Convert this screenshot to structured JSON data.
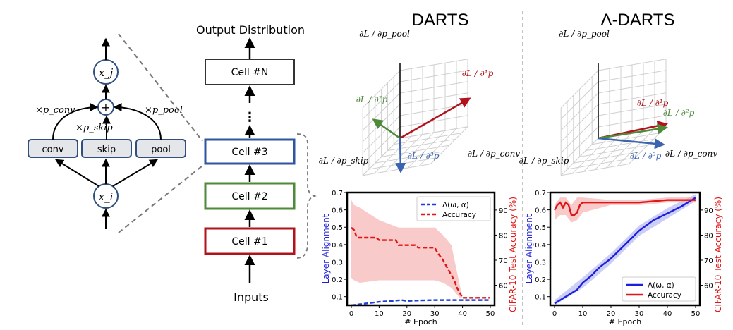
{
  "cell": {
    "x_i": "x_i",
    "x_j": "x_j",
    "plus": "+",
    "ops": [
      "conv",
      "skip",
      "pool"
    ],
    "weights": [
      "×p_conv",
      "×p_skip",
      "×p_pool"
    ]
  },
  "network": {
    "output": "Output Distribution",
    "cells": [
      "Cell #N",
      "Cell #3",
      "Cell #2",
      "Cell #1"
    ],
    "ellipsis": "⋮",
    "inputs": "Inputs"
  },
  "panels": {
    "darts_title": "DARTS",
    "lambda_title": "Λ-DARTS",
    "axis_pool": "∂L / ∂p_pool",
    "axis_skip": "∂L / ∂p_skip",
    "axis_conv": "∂L / ∂p_conv",
    "grad1": "∂L / ∂¹p",
    "grad2": "∂L / ∂²p",
    "grad3": "∂L / ∂³p"
  },
  "chart_data": [
    {
      "type": "line",
      "title": "DARTS",
      "xlabel": "# Epoch",
      "ylabel": "Layer Alignment",
      "y2label": "CIFAR-10 Test Accuracy (%)",
      "xlim": [
        0,
        50
      ],
      "ylim": [
        0.05,
        0.7
      ],
      "y2lim": [
        52,
        97
      ],
      "x_ticks": [
        0,
        10,
        20,
        30,
        40,
        50
      ],
      "y_ticks": [
        0.1,
        0.2,
        0.3,
        0.4,
        0.5,
        0.6,
        0.7
      ],
      "y2_ticks": [
        60,
        70,
        80,
        90
      ],
      "legend": "top-right",
      "series": [
        {
          "name": "Λ(ω, α)",
          "axis": "left",
          "style": "dashed",
          "color": "#1f3fd8",
          "x": [
            0,
            5,
            10,
            15,
            18,
            20,
            25,
            30,
            35,
            40,
            45,
            50
          ],
          "y": [
            0.05,
            0.06,
            0.07,
            0.075,
            0.08,
            0.075,
            0.078,
            0.08,
            0.08,
            0.08,
            0.08,
            0.08
          ]
        },
        {
          "name": "Accuracy",
          "axis": "right",
          "style": "dashed",
          "color": "#e01515",
          "x": [
            0,
            1,
            2,
            9,
            10,
            16,
            17,
            23,
            24,
            30,
            31,
            33,
            34,
            35,
            36,
            37,
            38,
            39,
            40,
            50
          ],
          "y": [
            83,
            82,
            79,
            79,
            78,
            78,
            76,
            76,
            75,
            75,
            73,
            70,
            68,
            66,
            64,
            62,
            59,
            57,
            55,
            55
          ]
        }
      ],
      "bands": [
        {
          "series": "Accuracy",
          "color": "#f4a6a6",
          "x": [
            0,
            1,
            3,
            10,
            17,
            24,
            30,
            33,
            36,
            39,
            40,
            50
          ],
          "upper": [
            94,
            92,
            91,
            86,
            83,
            83,
            83,
            80,
            76,
            60,
            55,
            55
          ],
          "lower": [
            63,
            62,
            61,
            62,
            62,
            62,
            62,
            61,
            59,
            55,
            55,
            55
          ]
        }
      ]
    },
    {
      "type": "line",
      "title": "Λ-DARTS",
      "xlabel": "# Epoch",
      "ylabel": "Layer Alignment",
      "y2label": "CIFAR-10 Test Accuracy (%)",
      "xlim": [
        0,
        50
      ],
      "ylim": [
        0.05,
        0.7
      ],
      "y2lim": [
        52,
        97
      ],
      "x_ticks": [
        0,
        10,
        20,
        30,
        40,
        50
      ],
      "y_ticks": [
        0.1,
        0.2,
        0.3,
        0.4,
        0.5,
        0.6,
        0.7
      ],
      "y2_ticks": [
        60,
        70,
        80,
        90
      ],
      "legend": "bottom-right",
      "series": [
        {
          "name": "Λ(ω, α)",
          "axis": "left",
          "style": "solid",
          "color": "#1f1fd8",
          "x": [
            0,
            2,
            5,
            8,
            10,
            13,
            16,
            20,
            25,
            30,
            35,
            40,
            45,
            48,
            50
          ],
          "y": [
            0.06,
            0.08,
            0.11,
            0.14,
            0.18,
            0.22,
            0.27,
            0.32,
            0.4,
            0.48,
            0.54,
            0.58,
            0.62,
            0.65,
            0.67
          ]
        },
        {
          "name": "Accuracy",
          "axis": "right",
          "style": "solid",
          "color": "#e01515",
          "x": [
            0,
            1,
            2,
            3,
            4,
            5,
            6,
            7,
            8,
            9,
            10,
            15,
            20,
            30,
            40,
            50
          ],
          "y": [
            90,
            92,
            93,
            91,
            93,
            92,
            88,
            88,
            89,
            92,
            93,
            93,
            93,
            93,
            94,
            94
          ]
        }
      ],
      "bands": [
        {
          "series": "Λ(ω, α)",
          "axis": "left",
          "color": "#a8aef0",
          "x": [
            0,
            10,
            20,
            30,
            40,
            50
          ],
          "upper": [
            0.08,
            0.21,
            0.35,
            0.51,
            0.61,
            0.69
          ],
          "lower": [
            0.05,
            0.15,
            0.29,
            0.45,
            0.55,
            0.65
          ]
        },
        {
          "series": "Accuracy",
          "axis": "right",
          "color": "#f4a6a6",
          "x": [
            0,
            2,
            4,
            6,
            8,
            10,
            20,
            30,
            40,
            50
          ],
          "upper": [
            92,
            95,
            95,
            92,
            95,
            95,
            94,
            94,
            95,
            95
          ],
          "lower": [
            86,
            88,
            88,
            85,
            86,
            89,
            92,
            92,
            93,
            93
          ]
        }
      ]
    }
  ]
}
